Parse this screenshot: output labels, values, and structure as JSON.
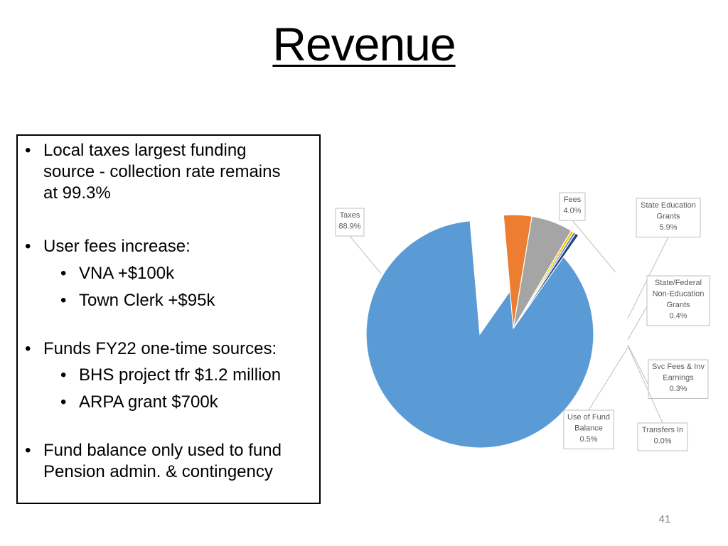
{
  "slide": {
    "title": "Revenue",
    "page_number": "41"
  },
  "bullets": [
    {
      "text": "Local taxes largest funding source - collection rate remains at 99.3%",
      "lines": [
        "Local taxes largest funding",
        "source - collection rate remains",
        "at 99.3%"
      ]
    },
    {
      "text": "User fees increase:",
      "lines": [
        "User fees increase:"
      ],
      "sub": [
        "VNA +$100k",
        "Town Clerk +$95k"
      ]
    },
    {
      "text": "Funds FY22 one-time sources:",
      "lines": [
        "Funds FY22 one-time sources:"
      ],
      "sub": [
        "BHS project tfr $1.2 million",
        "ARPA grant $700k"
      ]
    },
    {
      "text": "Fund balance only used to fund Pension admin. & contingency",
      "lines": [
        "Fund balance only used to fund",
        "Pension admin. & contingency"
      ]
    }
  ],
  "chart_data": {
    "type": "pie",
    "title": "",
    "exploded": true,
    "slices": [
      {
        "name": "Taxes",
        "value": 88.9,
        "label": "88.9%",
        "color": "#5b9bd5"
      },
      {
        "name": "Fees",
        "value": 4.0,
        "label": "4.0%",
        "color": "#ed7d31"
      },
      {
        "name": "State Education Grants",
        "value": 5.9,
        "label": "5.9%",
        "color": "#a5a5a5"
      },
      {
        "name": "State/Federal Non-Education Grants",
        "value": 0.4,
        "label": "0.4%",
        "color": "#ffc000"
      },
      {
        "name": "Svc Fees & Inv Earnings",
        "value": 0.3,
        "label": "0.3%",
        "color": "#4472c4"
      },
      {
        "name": "Transfers In",
        "value": 0.0,
        "label": "0.0%",
        "color": "#70ad47"
      },
      {
        "name": "Use of Fund Balance",
        "value": 0.5,
        "label": "0.5%",
        "color": "#264478"
      }
    ],
    "callout_lines": {
      "Taxes": [
        "Taxes",
        "88.9%"
      ],
      "Fees": [
        "Fees",
        "4.0%"
      ],
      "State Education Grants": [
        "State Education",
        "Grants",
        "5.9%"
      ],
      "State/Federal Non-Education Grants": [
        "State/Federal",
        "Non-Education",
        "Grants",
        "0.4%"
      ],
      "Svc Fees & Inv Earnings": [
        "Svc Fees & Inv",
        "Earnings",
        "0.3%"
      ],
      "Transfers In": [
        "Transfers In",
        "0.0%"
      ],
      "Use of Fund Balance": [
        "Use of Fund",
        "Balance",
        "0.5%"
      ]
    }
  }
}
